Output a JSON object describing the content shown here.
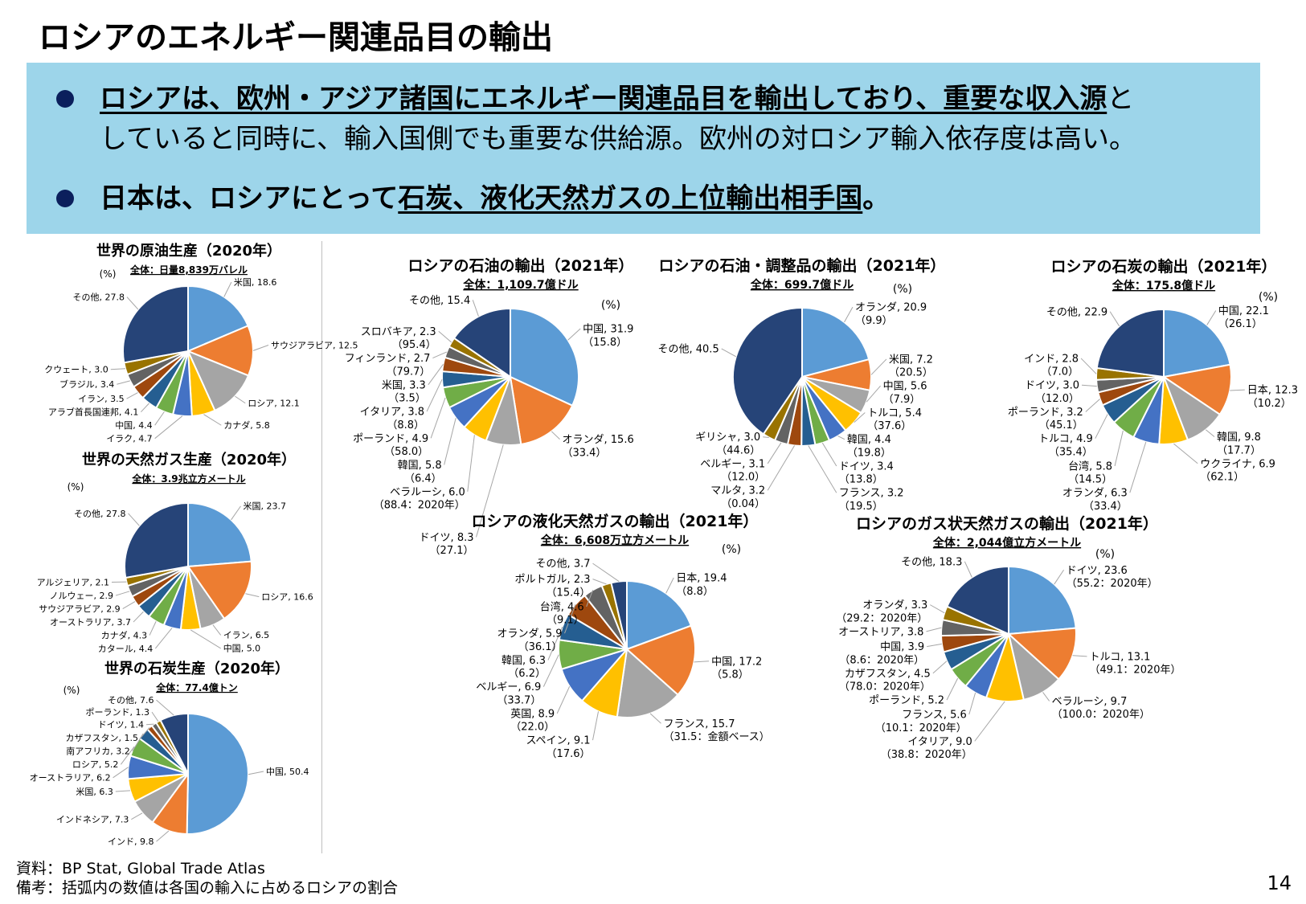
{
  "header": {
    "title": "ロシアのエネルギー関連品目の輸出",
    "bullet1": {
      "bold_underlined": "ロシアは、欧州・アジア諸国にエネルギー関連品目を輸出しており、重要な収入源",
      "tail": "と",
      "line2": "していると同時に、輸入国側でも重要な供給源。欧州の対ロシア輸入依存度は高い。"
    },
    "bullet2": {
      "bold": "日本は、ロシアにとって",
      "bold_underlined": "石炭、液化天然ガスの上位輸出相手国",
      "tail": "。"
    }
  },
  "colors": {
    "box": "#9DD5EA",
    "bullet": "#0B1F5C",
    "palette": [
      "#5B9BD5",
      "#ED7D31",
      "#A5A5A5",
      "#FFC000",
      "#4472C4",
      "#70AD47",
      "#255E91",
      "#9E480E",
      "#636363",
      "#997300"
    ],
    "other": "#264478"
  },
  "chart_data": [
    {
      "type": "pie",
      "title": "世界の原油生産（2020年）",
      "subtitle": "全体：日量8,839万バレル",
      "unit": "(%)",
      "slices": [
        {
          "label": "米国",
          "value": 18.6
        },
        {
          "label": "サウジアラビア",
          "value": 12.5
        },
        {
          "label": "ロシア",
          "value": 12.1
        },
        {
          "label": "カナダ",
          "value": 5.8
        },
        {
          "label": "イラク",
          "value": 4.7
        },
        {
          "label": "中国",
          "value": 4.4
        },
        {
          "label": "アラブ首長国連邦",
          "value": 4.1
        },
        {
          "label": "イラン",
          "value": 3.5
        },
        {
          "label": "ブラジル",
          "value": 3.4
        },
        {
          "label": "クウェート",
          "value": 3.0
        },
        {
          "label": "その他",
          "value": 27.8
        }
      ]
    },
    {
      "type": "pie",
      "title": "世界の天然ガス生産（2020年）",
      "subtitle": "全体：3.9兆立方メートル",
      "unit": "(%)",
      "slices": [
        {
          "label": "米国",
          "value": 23.7
        },
        {
          "label": "ロシア",
          "value": 16.6
        },
        {
          "label": "イラン",
          "value": 6.5
        },
        {
          "label": "中国",
          "value": 5.0
        },
        {
          "label": "カタール",
          "value": 4.4
        },
        {
          "label": "カナダ",
          "value": 4.3
        },
        {
          "label": "オーストラリア",
          "value": 3.7
        },
        {
          "label": "サウジアラビア",
          "value": 2.9
        },
        {
          "label": "ノルウェー",
          "value": 2.9
        },
        {
          "label": "アルジェリア",
          "value": 2.1
        },
        {
          "label": "その他",
          "value": 27.8
        }
      ]
    },
    {
      "type": "pie",
      "title": "世界の石炭生産（2020年）",
      "subtitle": "全体：77.4億トン",
      "unit": "(%)",
      "slices": [
        {
          "label": "中国",
          "value": 50.4
        },
        {
          "label": "インド",
          "value": 9.8
        },
        {
          "label": "インドネシア",
          "value": 7.3
        },
        {
          "label": "米国",
          "value": 6.3
        },
        {
          "label": "オーストラリア",
          "value": 6.2
        },
        {
          "label": "ロシア",
          "value": 5.2
        },
        {
          "label": "南アフリカ",
          "value": 3.2
        },
        {
          "label": "カザフスタン",
          "value": 1.5
        },
        {
          "label": "ドイツ",
          "value": 1.4
        },
        {
          "label": "ポーランド",
          "value": 1.3
        },
        {
          "label": "その他",
          "value": 7.6
        }
      ]
    },
    {
      "type": "pie",
      "title": "ロシアの石油の輸出（2021年）",
      "subtitle": "全体：1,109.7億ドル",
      "unit": "(%)",
      "slices": [
        {
          "label": "中国",
          "value": 31.9,
          "note": "（15.8）"
        },
        {
          "label": "オランダ",
          "value": 15.6,
          "note": "（33.4）"
        },
        {
          "label": "ドイツ",
          "value": 8.3,
          "note": "（27.1）"
        },
        {
          "label": "ベラルーシ",
          "value": 6.0,
          "note": "（88.4：2020年）"
        },
        {
          "label": "韓国",
          "value": 5.8,
          "note": "（6.4）"
        },
        {
          "label": "ポーランド",
          "value": 4.9,
          "note": "（58.0）"
        },
        {
          "label": "イタリア",
          "value": 3.8,
          "note": "（8.8）"
        },
        {
          "label": "米国",
          "value": 3.3,
          "note": "（3.5）"
        },
        {
          "label": "フィンランド",
          "value": 2.7,
          "note": "（79.7）"
        },
        {
          "label": "スロバキア",
          "value": 2.3,
          "note": "（95.4）"
        },
        {
          "label": "その他",
          "value": 15.4
        }
      ]
    },
    {
      "type": "pie",
      "title": "ロシアの石油・調整品の輸出（2021年）",
      "subtitle": "全体：699.7億ドル",
      "unit": "(%)",
      "slices": [
        {
          "label": "オランダ",
          "value": 20.9,
          "note": "（9.9）"
        },
        {
          "label": "米国",
          "value": 7.2,
          "note": "（20.5）"
        },
        {
          "label": "中国",
          "value": 5.6,
          "note": "（7.9）"
        },
        {
          "label": "トルコ",
          "value": 5.4,
          "note": "（37.6）"
        },
        {
          "label": "韓国",
          "value": 4.4,
          "note": "（19.8）"
        },
        {
          "label": "ドイツ",
          "value": 3.4,
          "note": "（13.8）"
        },
        {
          "label": "フランス",
          "value": 3.2,
          "note": "（19.5）"
        },
        {
          "label": "マルタ",
          "value": 3.2,
          "note": "（0.04）"
        },
        {
          "label": "ベルギー",
          "value": 3.1,
          "note": "（12.0）"
        },
        {
          "label": "ギリシャ",
          "value": 3.0,
          "note": "（44.6）"
        },
        {
          "label": "その他",
          "value": 40.5
        }
      ]
    },
    {
      "type": "pie",
      "title": "ロシアの石炭の輸出（2021年）",
      "subtitle": "全体：175.8億ドル",
      "unit": "(%)",
      "slices": [
        {
          "label": "中国",
          "value": 22.1,
          "note": "（26.1）"
        },
        {
          "label": "日本",
          "value": 12.3,
          "note": "（10.2）"
        },
        {
          "label": "韓国",
          "value": 9.8,
          "note": "（17.7）"
        },
        {
          "label": "ウクライナ",
          "value": 6.9,
          "note": "（62.1）"
        },
        {
          "label": "オランダ",
          "value": 6.3,
          "note": "（33.4）"
        },
        {
          "label": "台湾",
          "value": 5.8,
          "note": "（14.5）"
        },
        {
          "label": "トルコ",
          "value": 4.9,
          "note": "（35.4）"
        },
        {
          "label": "ポーランド",
          "value": 3.2,
          "note": "（45.1）"
        },
        {
          "label": "ドイツ",
          "value": 3.0,
          "note": "（12.0）"
        },
        {
          "label": "インド",
          "value": 2.8,
          "note": "（7.0）"
        },
        {
          "label": "その他",
          "value": 22.9
        }
      ]
    },
    {
      "type": "pie",
      "title": "ロシアの液化天然ガスの輸出（2021年）",
      "subtitle": "全体：6,608万立方メートル",
      "unit": "(%)",
      "slices": [
        {
          "label": "日本",
          "value": 19.4,
          "note": "（8.8）"
        },
        {
          "label": "中国",
          "value": 17.2,
          "note": "（5.8）"
        },
        {
          "label": "フランス",
          "value": 15.7,
          "note": "（31.5：金額ベース）"
        },
        {
          "label": "スペイン",
          "value": 9.1,
          "note": "（17.6）"
        },
        {
          "label": "英国",
          "value": 8.9,
          "note": "（22.0）"
        },
        {
          "label": "ベルギー",
          "value": 6.9,
          "note": "（33.7）"
        },
        {
          "label": "韓国",
          "value": 6.3,
          "note": "（6.2）"
        },
        {
          "label": "オランダ",
          "value": 5.9,
          "note": "（36.1）"
        },
        {
          "label": "台湾",
          "value": 4.6,
          "note": "（9.1）"
        },
        {
          "label": "ポルトガル",
          "value": 2.3,
          "note": "（15.4）"
        },
        {
          "label": "その他",
          "value": 3.7
        }
      ]
    },
    {
      "type": "pie",
      "title": "ロシアのガス状天然ガスの輸出（2021年）",
      "subtitle": "全体：2,044億立方メートル",
      "unit": "(%)",
      "slices": [
        {
          "label": "ドイツ",
          "value": 23.6,
          "note": "（55.2：2020年）"
        },
        {
          "label": "トルコ",
          "value": 13.1,
          "note": "（49.1：2020年）"
        },
        {
          "label": "ベラルーシ",
          "value": 9.7,
          "note": "（100.0：2020年）"
        },
        {
          "label": "イタリア",
          "value": 9.0,
          "note": "（38.8：2020年）"
        },
        {
          "label": "フランス",
          "value": 5.6,
          "note": "（10.1：2020年）"
        },
        {
          "label": "ポーランド",
          "value": 5.2
        },
        {
          "label": "カザフスタン",
          "value": 4.5,
          "note": "（78.0：2020年）"
        },
        {
          "label": "中国",
          "value": 3.9,
          "note": "（8.6：2020年）"
        },
        {
          "label": "オーストリア",
          "value": 3.8
        },
        {
          "label": "オランダ",
          "value": 3.3,
          "note": "（29.2：2020年）"
        },
        {
          "label": "その他",
          "value": 18.3
        }
      ]
    }
  ],
  "footer": {
    "source": "資料：BP Stat, Global Trade Atlas",
    "note": "備考：括弧内の数値は各国の輸入に占めるロシアの割合",
    "page": "14"
  }
}
